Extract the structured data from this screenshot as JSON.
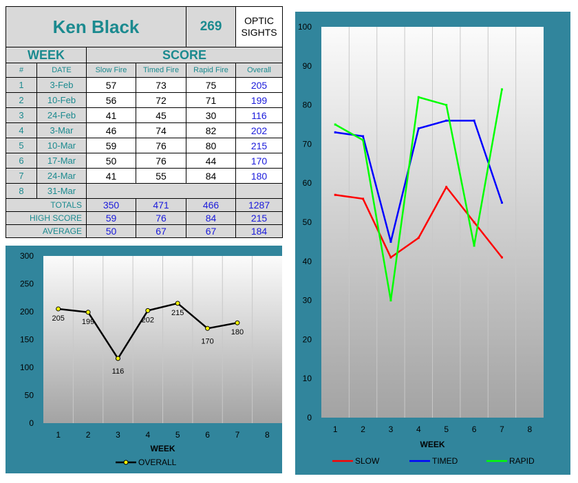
{
  "shooter": {
    "name": "Ken Black",
    "number": "269",
    "category": "OPTIC SIGHTS"
  },
  "table": {
    "week_header": "WEEK",
    "score_header": "SCORE",
    "columns": [
      "#",
      "DATE",
      "Slow Fire",
      "Timed Fire",
      "Rapid Fire",
      "Overall"
    ],
    "rows": [
      {
        "num": "1",
        "date": "3-Feb",
        "slow": "57",
        "timed": "73",
        "rapid": "75",
        "overall": "205"
      },
      {
        "num": "2",
        "date": "10-Feb",
        "slow": "56",
        "timed": "72",
        "rapid": "71",
        "overall": "199"
      },
      {
        "num": "3",
        "date": "24-Feb",
        "slow": "41",
        "timed": "45",
        "rapid": "30",
        "overall": "116"
      },
      {
        "num": "4",
        "date": "3-Mar",
        "slow": "46",
        "timed": "74",
        "rapid": "82",
        "overall": "202"
      },
      {
        "num": "5",
        "date": "10-Mar",
        "slow": "59",
        "timed": "76",
        "rapid": "80",
        "overall": "215"
      },
      {
        "num": "6",
        "date": "17-Mar",
        "slow": "50",
        "timed": "76",
        "rapid": "44",
        "overall": "170"
      },
      {
        "num": "7",
        "date": "24-Mar",
        "slow": "41",
        "timed": "55",
        "rapid": "84",
        "overall": "180"
      },
      {
        "num": "8",
        "date": "31-Mar",
        "slow": "",
        "timed": "",
        "rapid": "",
        "overall": ""
      }
    ],
    "summary": [
      {
        "label": "TOTALS",
        "slow": "350",
        "timed": "471",
        "rapid": "466",
        "overall": "1287"
      },
      {
        "label": "HIGH SCORE",
        "slow": "59",
        "timed": "76",
        "rapid": "84",
        "overall": "215"
      },
      {
        "label": "AVERAGE",
        "slow": "50",
        "timed": "67",
        "rapid": "67",
        "overall": "184"
      }
    ]
  },
  "chart_data": [
    {
      "type": "line",
      "xlabel": "WEEK",
      "ylabel": "",
      "categories": [
        "1",
        "2",
        "3",
        "4",
        "5",
        "6",
        "7",
        "8"
      ],
      "ylim": [
        0,
        300
      ],
      "yticks": [
        0,
        50,
        100,
        150,
        200,
        250,
        300
      ],
      "grid": "vertical",
      "legend_position": "bottom",
      "series": [
        {
          "name": "OVERALL",
          "color": "#000000",
          "marker_color": "#ffff00",
          "values": [
            205,
            199,
            116,
            202,
            215,
            170,
            180,
            null
          ],
          "data_labels": [
            "205",
            "199",
            "116",
            "202",
            "215",
            "170",
            "180"
          ]
        }
      ]
    },
    {
      "type": "line",
      "xlabel": "WEEK",
      "ylabel": "",
      "categories": [
        "1",
        "2",
        "3",
        "4",
        "5",
        "6",
        "7",
        "8"
      ],
      "ylim": [
        0,
        100
      ],
      "yticks": [
        0,
        10,
        20,
        30,
        40,
        50,
        60,
        70,
        80,
        90,
        100
      ],
      "grid": "vertical",
      "legend_position": "bottom",
      "series": [
        {
          "name": "SLOW",
          "color": "#ff0000",
          "values": [
            57,
            56,
            41,
            46,
            59,
            50,
            41,
            null
          ]
        },
        {
          "name": "TIMED",
          "color": "#0000ff",
          "values": [
            73,
            72,
            45,
            74,
            76,
            76,
            55,
            null
          ]
        },
        {
          "name": "RAPID",
          "color": "#00ff00",
          "values": [
            75,
            71,
            30,
            82,
            80,
            44,
            84,
            null
          ]
        }
      ]
    }
  ]
}
